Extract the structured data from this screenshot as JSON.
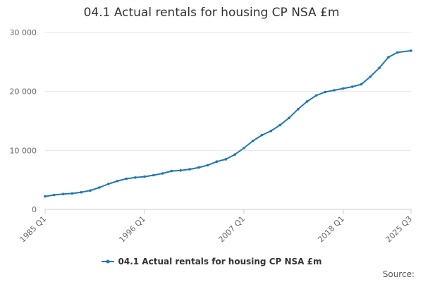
{
  "chart_data": {
    "type": "line",
    "title": "04.1 Actual rentals for housing CP NSA £m",
    "xlabel": "",
    "ylabel": "",
    "x_tick_labels": [
      "1985 Q1",
      "1996 Q1",
      "2007 Q1",
      "2018 Q1",
      "2025 Q3"
    ],
    "y_tick_labels": [
      "0",
      "10 000",
      "20 000",
      "30 000"
    ],
    "ylim": [
      0,
      30000
    ],
    "grid": "horizontal",
    "legend_position": "bottom",
    "series": [
      {
        "name": "04.1 Actual rentals for housing CP NSA £m",
        "color": "#1f77b4",
        "points": [
          [
            "1985 Q1",
            2200
          ],
          [
            "1986 Q1",
            2450
          ],
          [
            "1987 Q1",
            2600
          ],
          [
            "1988 Q1",
            2700
          ],
          [
            "1989 Q1",
            2900
          ],
          [
            "1990 Q1",
            3200
          ],
          [
            "1991 Q1",
            3700
          ],
          [
            "1992 Q1",
            4300
          ],
          [
            "1993 Q1",
            4800
          ],
          [
            "1994 Q1",
            5200
          ],
          [
            "1995 Q1",
            5400
          ],
          [
            "1996 Q1",
            5550
          ],
          [
            "1997 Q1",
            5800
          ],
          [
            "1998 Q1",
            6100
          ],
          [
            "1999 Q1",
            6500
          ],
          [
            "2000 Q1",
            6600
          ],
          [
            "2001 Q1",
            6800
          ],
          [
            "2002 Q1",
            7100
          ],
          [
            "2003 Q1",
            7500
          ],
          [
            "2004 Q1",
            8100
          ],
          [
            "2005 Q1",
            8500
          ],
          [
            "2006 Q1",
            9300
          ],
          [
            "2007 Q1",
            10400
          ],
          [
            "2008 Q1",
            11600
          ],
          [
            "2009 Q1",
            12600
          ],
          [
            "2010 Q1",
            13300
          ],
          [
            "2011 Q1",
            14300
          ],
          [
            "2012 Q1",
            15500
          ],
          [
            "2013 Q1",
            17000
          ],
          [
            "2014 Q1",
            18300
          ],
          [
            "2015 Q1",
            19300
          ],
          [
            "2016 Q1",
            19900
          ],
          [
            "2017 Q1",
            20200
          ],
          [
            "2018 Q1",
            20500
          ],
          [
            "2019 Q1",
            20800
          ],
          [
            "2020 Q1",
            21200
          ],
          [
            "2021 Q1",
            22500
          ],
          [
            "2022 Q1",
            24000
          ],
          [
            "2023 Q1",
            25800
          ],
          [
            "2024 Q1",
            26600
          ],
          [
            "2025 Q3",
            26900
          ]
        ]
      }
    ]
  },
  "footer": {
    "source_label": "Source:"
  }
}
